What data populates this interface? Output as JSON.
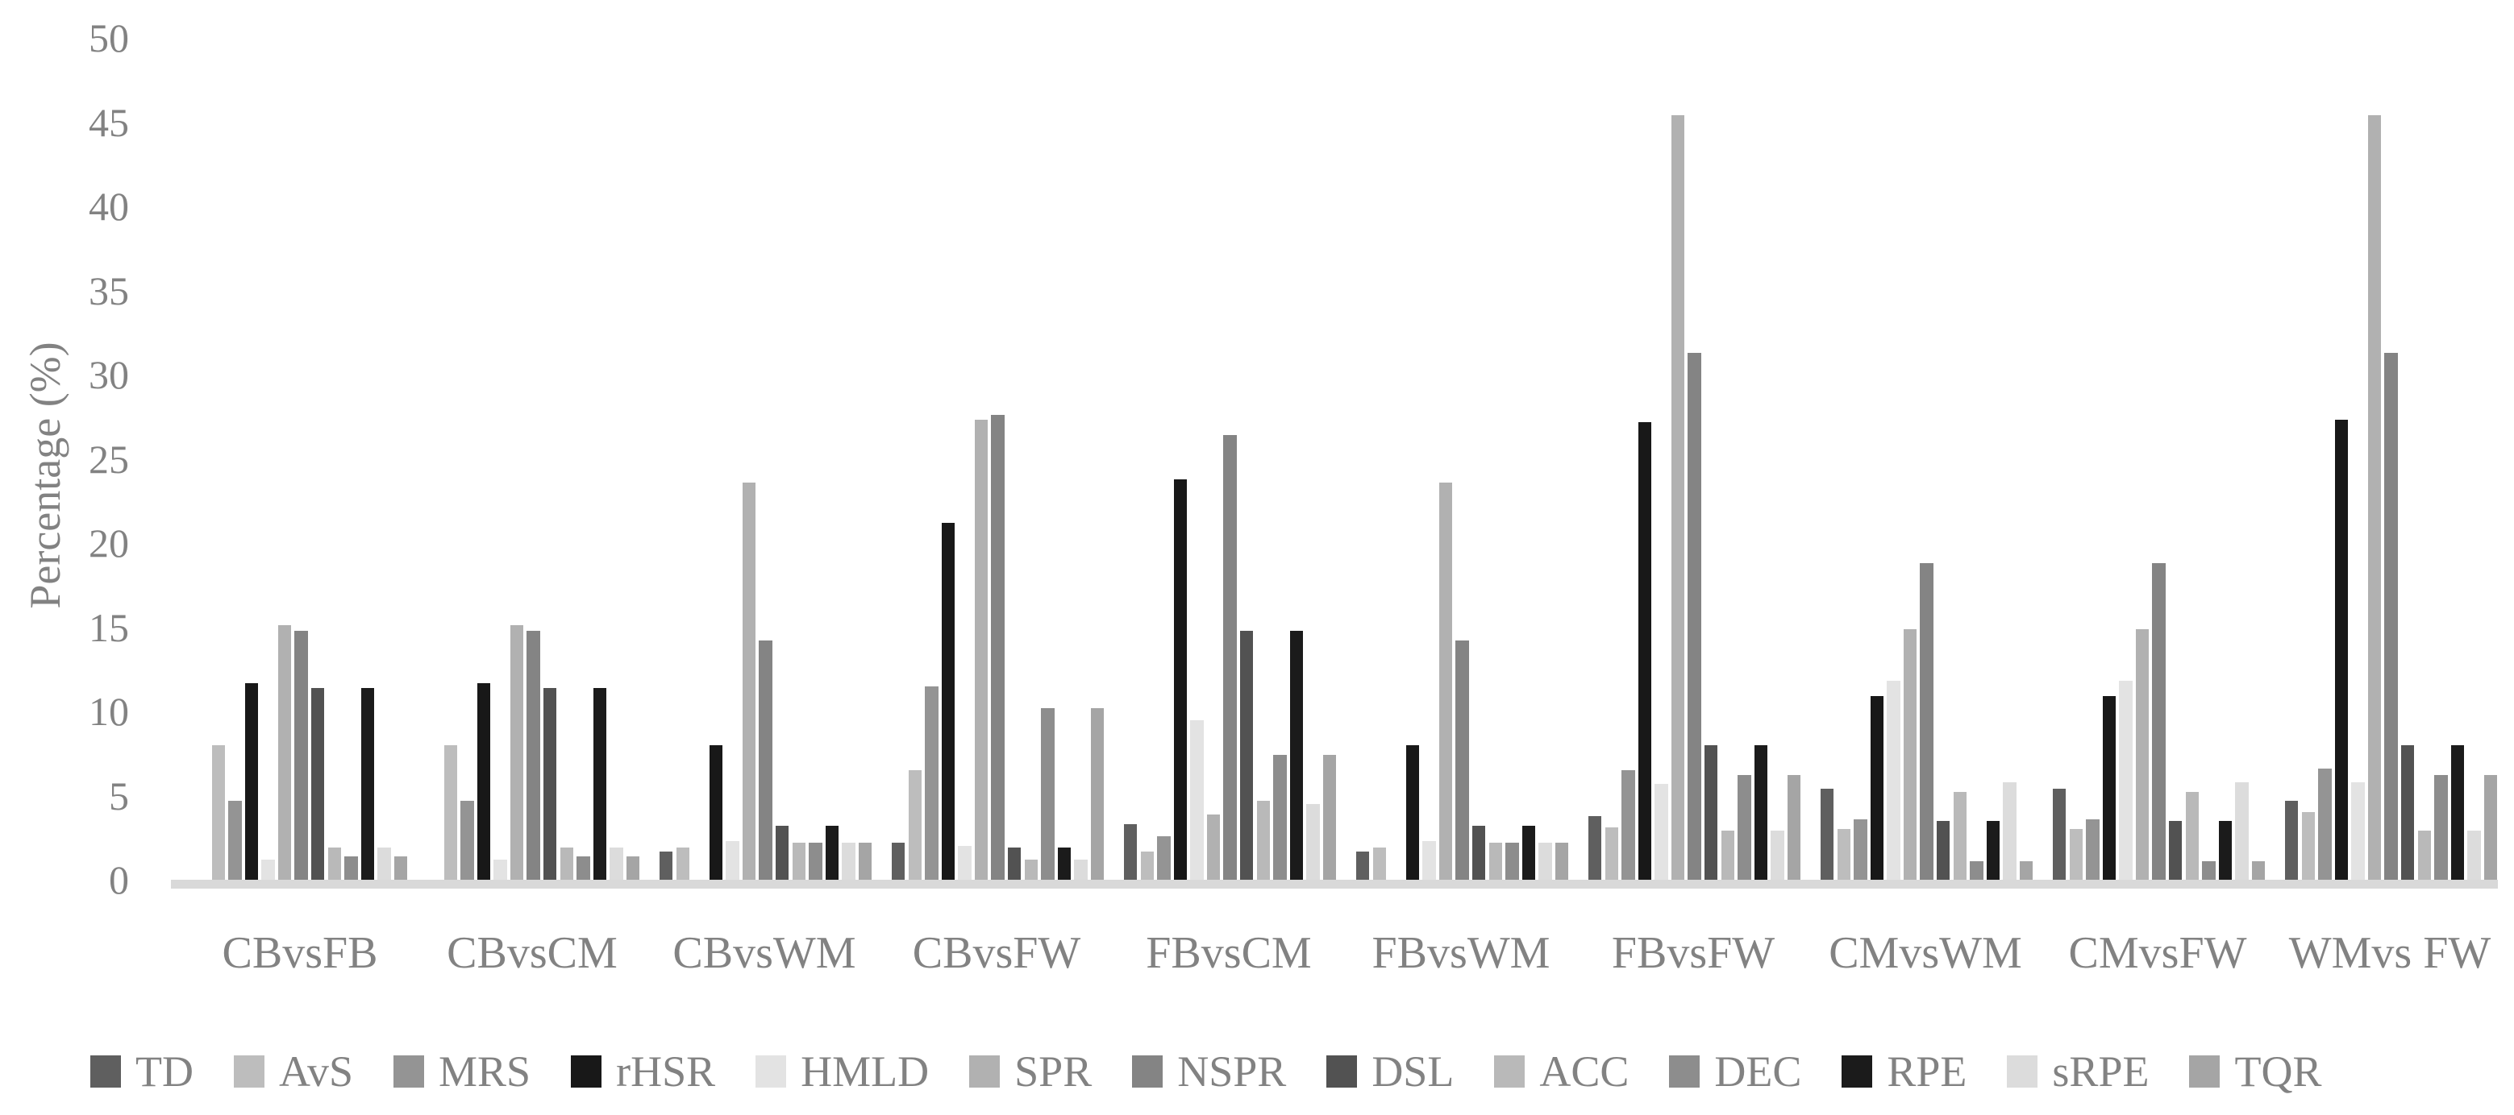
{
  "colors": {
    "background": "#ffffff",
    "text": "#828282",
    "axis_line": "#d9d9d9"
  },
  "chart_data": {
    "type": "bar",
    "title": "",
    "xlabel": "",
    "ylabel": "Percentage (%)",
    "ylim": [
      0,
      50
    ],
    "yticks": [
      0,
      5,
      10,
      15,
      20,
      25,
      30,
      35,
      40,
      45,
      50
    ],
    "grid": false,
    "legend_position": "bottom",
    "categories": [
      "CBvsFB",
      "CBvsCM",
      "CBvsWM",
      "CBvsFW",
      "FBvsCM",
      "FBvsWM",
      "FBvsFW",
      "CMvsWM",
      "CMvsFW",
      "WMvs FW"
    ],
    "series": [
      {
        "name": "TD",
        "color": "#5f5f5f",
        "values": [
          0,
          0,
          1.7,
          2.2,
          3.3,
          1.7,
          3.8,
          5.4,
          5.4,
          4.7
        ]
      },
      {
        "name": "AvS",
        "color": "#bdbdbd",
        "values": [
          8.0,
          8.0,
          1.9,
          6.5,
          1.7,
          1.9,
          3.1,
          3.0,
          3.0,
          4.0
        ]
      },
      {
        "name": "MRS",
        "color": "#949494",
        "values": [
          4.7,
          4.7,
          0,
          11.5,
          2.6,
          0,
          6.5,
          3.6,
          3.6,
          6.6
        ]
      },
      {
        "name": "rHSR",
        "color": "#181818",
        "values": [
          11.7,
          11.7,
          8.0,
          21.2,
          23.8,
          8.0,
          27.2,
          10.9,
          10.9,
          27.3
        ]
      },
      {
        "name": "HMLD",
        "color": "#e3e3e3",
        "values": [
          1.2,
          1.2,
          2.3,
          2.0,
          9.5,
          2.3,
          5.7,
          11.8,
          11.8,
          5.8
        ]
      },
      {
        "name": "SPR",
        "color": "#b1b1b1",
        "values": [
          15.1,
          15.1,
          23.6,
          27.3,
          3.9,
          23.6,
          45.4,
          14.9,
          14.9,
          45.4
        ]
      },
      {
        "name": "NSPR",
        "color": "#848484",
        "values": [
          14.8,
          14.8,
          14.2,
          27.6,
          26.4,
          14.2,
          31.3,
          18.8,
          18.8,
          31.3
        ]
      },
      {
        "name": "DSL",
        "color": "#525252",
        "values": [
          11.4,
          11.4,
          3.2,
          1.9,
          14.8,
          3.2,
          8.0,
          3.5,
          3.5,
          8.0
        ]
      },
      {
        "name": "ACC",
        "color": "#b9b9b9",
        "values": [
          1.9,
          1.9,
          2.2,
          1.2,
          4.7,
          2.2,
          2.9,
          5.2,
          5.2,
          2.9
        ]
      },
      {
        "name": "DEC",
        "color": "#8d8d8d",
        "values": [
          1.4,
          1.4,
          2.2,
          10.2,
          7.4,
          2.2,
          6.2,
          1.1,
          1.1,
          6.2
        ]
      },
      {
        "name": "RPE",
        "color": "#1b1b1b",
        "values": [
          11.4,
          11.4,
          3.2,
          1.9,
          14.8,
          3.2,
          8.0,
          3.5,
          3.5,
          8.0
        ]
      },
      {
        "name": "sRPE",
        "color": "#dcdcdc",
        "values": [
          1.9,
          1.9,
          2.2,
          1.2,
          4.5,
          2.2,
          2.9,
          5.8,
          5.8,
          2.9
        ]
      },
      {
        "name": "TQR",
        "color": "#a5a5a5",
        "values": [
          1.4,
          1.4,
          2.2,
          10.2,
          7.4,
          2.2,
          6.2,
          1.1,
          1.1,
          6.2
        ]
      }
    ]
  }
}
